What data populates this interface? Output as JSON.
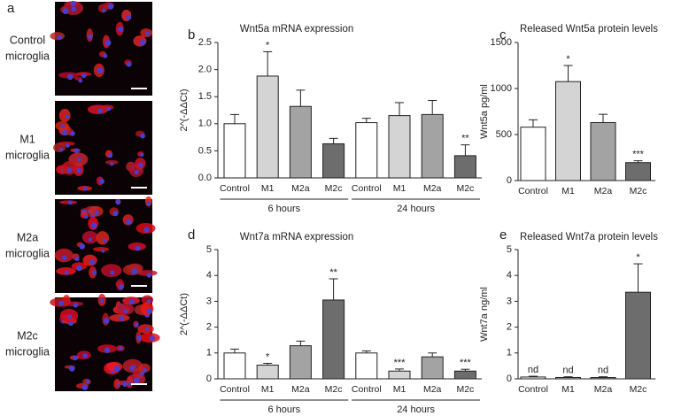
{
  "panel_a": {
    "panel": "a",
    "rows": [
      {
        "lines": [
          "Control",
          "microglia"
        ]
      },
      {
        "lines": [
          "M1",
          "microglia"
        ]
      },
      {
        "lines": [
          "M2a",
          "microglia"
        ]
      },
      {
        "lines": [
          "M2c",
          "microglia"
        ]
      }
    ]
  },
  "chart_data": [
    {
      "type": "bar",
      "panel": "b",
      "title": "Wnt5a mRNA expression",
      "y_label": "2^(-ΔΔCt)",
      "categories": [
        "Control",
        "M1",
        "M2a",
        "M2c",
        "Control",
        "M1",
        "M2a",
        "M2c"
      ],
      "groups": [
        "6 hours",
        "24 hours"
      ],
      "values": [
        1.0,
        1.88,
        1.32,
        0.63,
        1.02,
        1.15,
        1.17,
        0.41
      ],
      "errors": [
        0.17,
        0.45,
        0.3,
        0.1,
        0.08,
        0.24,
        0.26,
        0.2
      ],
      "annotations": [
        null,
        "*",
        null,
        null,
        null,
        null,
        null,
        "**"
      ],
      "colors": [
        "#ffffff",
        "#d4d4d4",
        "#a3a3a3",
        "#6d6d6d",
        "#ffffff",
        "#d4d4d4",
        "#a3a3a3",
        "#6d6d6d"
      ],
      "ylim": [
        0,
        2.5
      ],
      "yticks": [
        {
          "value": 0,
          "label": "0.0"
        },
        0.5,
        {
          "value": 1,
          "label": "1.0"
        },
        1.5,
        {
          "value": 2,
          "label": "2.0"
        },
        2.5
      ]
    },
    {
      "type": "bar",
      "panel": "c",
      "title": "Released Wnt5a protein levels",
      "y_label": "Wnt5a pg/ml",
      "categories": [
        "Control",
        "M1",
        "M2a",
        "M2c"
      ],
      "values": [
        580,
        1075,
        630,
        195
      ],
      "errors": [
        80,
        175,
        90,
        20
      ],
      "annotations": [
        null,
        "*",
        null,
        "***"
      ],
      "colors": [
        "#ffffff",
        "#d4d4d4",
        "#a3a3a3",
        "#6d6d6d"
      ],
      "ylim": [
        0,
        1500
      ],
      "yticks": [
        0,
        500,
        1000,
        1500
      ]
    },
    {
      "type": "bar",
      "panel": "d",
      "title": "Wnt7a mRNA expression",
      "y_label": "2^(-ΔΔCt)",
      "categories": [
        "Control",
        "M1",
        "M2a",
        "M2c",
        "Control",
        "M1",
        "M2a",
        "M2c"
      ],
      "groups": [
        "6 hours",
        "24 hours"
      ],
      "values": [
        1.0,
        0.53,
        1.28,
        3.05,
        1.0,
        0.3,
        0.85,
        0.3
      ],
      "errors": [
        0.15,
        0.07,
        0.18,
        0.82,
        0.08,
        0.08,
        0.15,
        0.07
      ],
      "annotations": [
        null,
        "*",
        null,
        "**",
        null,
        "***",
        null,
        "***"
      ],
      "colors": [
        "#ffffff",
        "#d4d4d4",
        "#a3a3a3",
        "#6d6d6d",
        "#ffffff",
        "#d4d4d4",
        "#a3a3a3",
        "#6d6d6d"
      ],
      "ylim": [
        0,
        5
      ],
      "yticks": [
        0,
        1,
        2,
        3,
        4,
        5
      ]
    },
    {
      "type": "bar",
      "panel": "e",
      "title": "Released Wnt7a protein levels",
      "y_label": "Wnt7a ng/ml",
      "categories": [
        "Control",
        "M1",
        "M2a",
        "M2c"
      ],
      "values": [
        0.07,
        0.05,
        0.05,
        3.35
      ],
      "errors": [
        0.03,
        0.03,
        0.03,
        1.1
      ],
      "annotations": [
        "nd",
        "nd",
        "nd",
        "*"
      ],
      "colors": [
        "#ffffff",
        "#d4d4d4",
        "#a3a3a3",
        "#6d6d6d"
      ],
      "ylim": [
        0,
        5
      ],
      "yticks": [
        0,
        1,
        2,
        3,
        4,
        5
      ]
    }
  ]
}
